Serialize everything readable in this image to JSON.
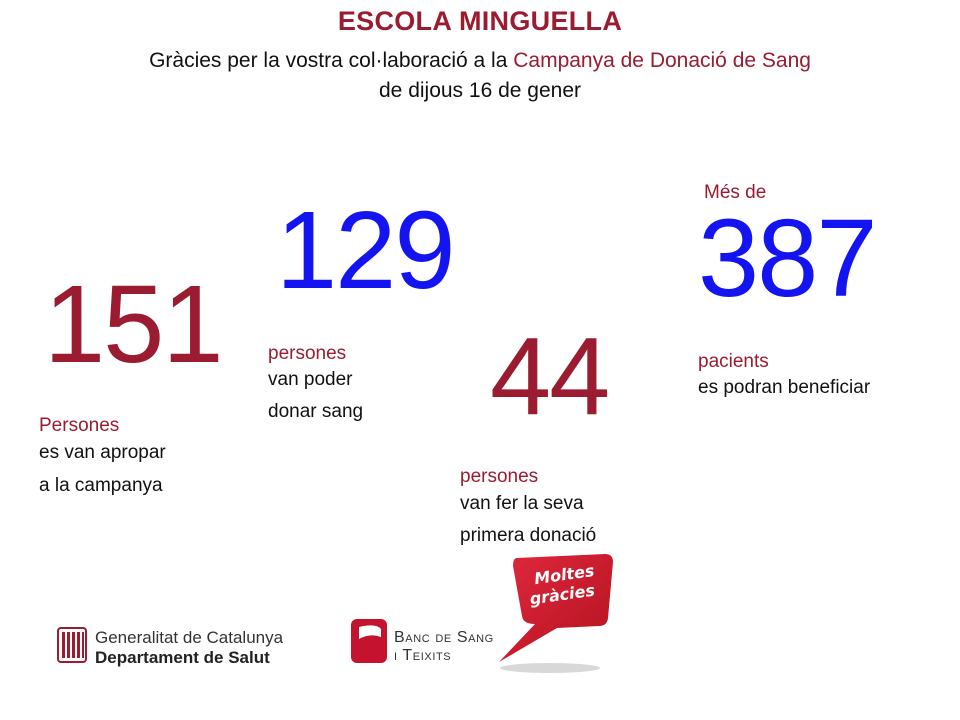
{
  "header": {
    "title": "ESCOLA MINGUELLA",
    "subtitle_part1": "Gràcies per la vostra col·laboració a la ",
    "subtitle_highlight": "Campanya de Donació de Sang",
    "subtitle_line2": "de dijous 16 de gener"
  },
  "stats": {
    "approached": {
      "number": "151",
      "label_highlight": "Persones",
      "line1": "es van apropar",
      "line2": "a la campanya"
    },
    "donated": {
      "number": "129",
      "label_highlight": "persones",
      "line1": "van poder",
      "line2": "donar sang"
    },
    "first_time": {
      "number": "44",
      "label_highlight": "persones",
      "line1": "van fer la seva",
      "line2": "primera donació"
    },
    "patients": {
      "prefix": "Més de",
      "number": "387",
      "label_highlight": "pacients",
      "line1": "es podran beneficiar"
    }
  },
  "logos": {
    "generalitat_line1": "Generalitat de Catalunya",
    "generalitat_line2": "Departament de Salut",
    "banc_line1": "Banc de Sang",
    "banc_line2": "i Teixits",
    "bubble_line1": "Moltes",
    "bubble_line2": "gràcies"
  },
  "colors": {
    "accent_red": "#9b1b30",
    "accent_blue": "#1414f0",
    "text": "#111111"
  }
}
